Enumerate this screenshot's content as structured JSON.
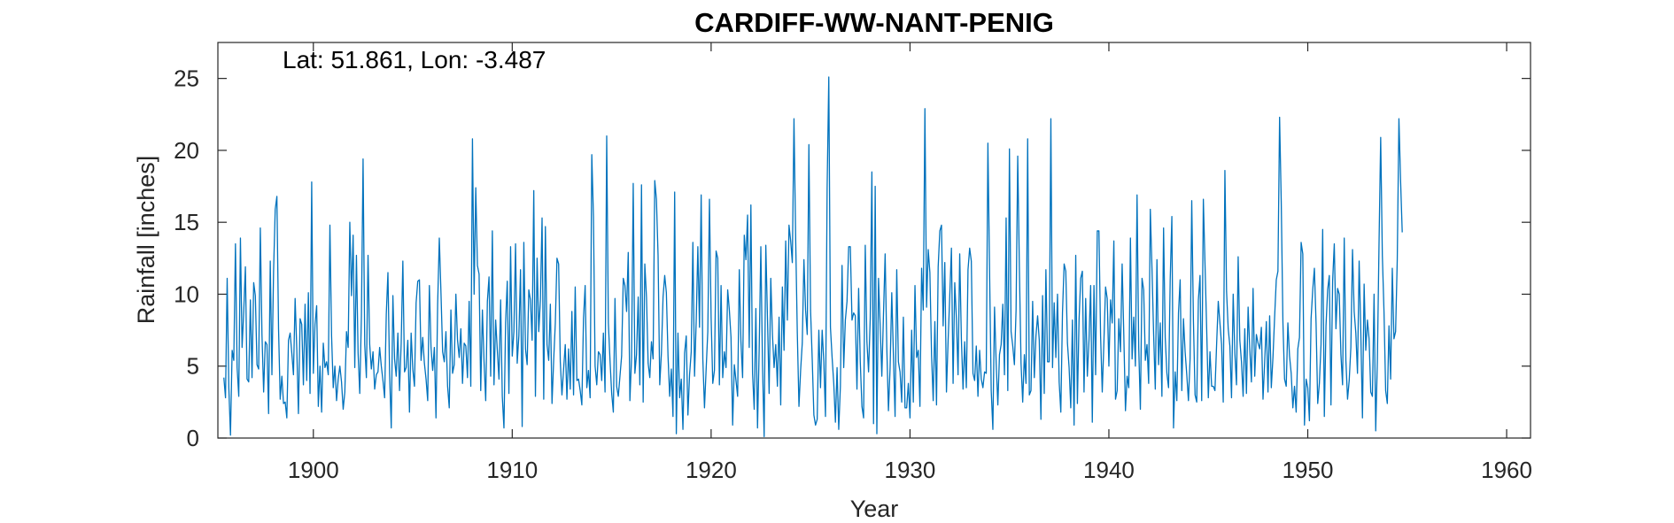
{
  "chart_data": {
    "type": "line",
    "title": "CARDIFF-WW-NANT-PENIG",
    "annotation": "Lat: 51.861, Lon: -3.487",
    "xlabel": "Year",
    "ylabel": "Rainfall [inches]",
    "xlim": [
      1895.2,
      1961.2
    ],
    "ylim": [
      0,
      27.5
    ],
    "xticks": [
      1900,
      1910,
      1920,
      1930,
      1940,
      1950,
      1960
    ],
    "yticks": [
      0,
      5,
      10,
      15,
      20,
      25
    ],
    "grid": false,
    "line_color": "#0072BD",
    "series": [
      {
        "start_year": 1895.5,
        "step_months": 1,
        "values": [
          4.2,
          2.8,
          11.1,
          3.5,
          0.2,
          6.1,
          5.4,
          13.5,
          4.9,
          2.9,
          13.9,
          6.3,
          8.8,
          11.9,
          4.1,
          3.9,
          9.6,
          4.2,
          10.8,
          9.9,
          5.1,
          4.8,
          14.6,
          7.2,
          3.2,
          6.7,
          6.5,
          1.7,
          12.3,
          4.4,
          11.6,
          15.9,
          16.8,
          7.6,
          2.7,
          4.3,
          2.4,
          2.5,
          1.4,
          6.8,
          7.3,
          5.9,
          4.4,
          9.7,
          6.2,
          1.7,
          8.3,
          7.9,
          3.7,
          9.3,
          4.0,
          10.1,
          3.1,
          17.8,
          4.5,
          7.9,
          9.2,
          2.2,
          5.0,
          1.8,
          6.6,
          4.9,
          5.3,
          4.4,
          14.8,
          7.1,
          3.5,
          5.0,
          2.6,
          4.1,
          5.0,
          3.9,
          2.0,
          3.2,
          7.4,
          6.3,
          15.0,
          9.9,
          14.1,
          4.9,
          12.7,
          5.9,
          3.1,
          8.5,
          19.4,
          6.5,
          4.2,
          12.7,
          6.5,
          4.8,
          6.0,
          3.4,
          4.4,
          4.6,
          6.3,
          5.0,
          4.0,
          2.8,
          8.6,
          11.5,
          4.5,
          0.7,
          9.9,
          5.5,
          4.3,
          7.3,
          3.3,
          6.6,
          12.3,
          4.6,
          4.9,
          6.8,
          1.8,
          7.3,
          4.8,
          3.6,
          9.4,
          10.9,
          11.0,
          5.4,
          7.0,
          5.2,
          4.1,
          2.6,
          10.6,
          6.3,
          4.7,
          6.3,
          1.4,
          9.3,
          13.9,
          10.1,
          6.0,
          5.3,
          7.4,
          3.6,
          2.1,
          8.9,
          4.5,
          5.1,
          10.0,
          6.8,
          5.6,
          7.6,
          3.8,
          6.6,
          6.4,
          4.2,
          9.5,
          3.6,
          20.8,
          10.0,
          17.4,
          12.0,
          11.4,
          3.3,
          8.9,
          5.3,
          2.6,
          9.5,
          11.2,
          4.3,
          14.4,
          3.7,
          8.2,
          6.1,
          4.1,
          9.6,
          2.9,
          0.7,
          8.0,
          10.9,
          3.1,
          13.3,
          5.7,
          7.4,
          13.5,
          5.2,
          7.1,
          11.7,
          0.8,
          13.6,
          6.2,
          5.1,
          10.3,
          9.6,
          6.8,
          17.2,
          2.9,
          12.5,
          7.4,
          9.6,
          15.3,
          2.7,
          14.7,
          6.5,
          5.4,
          9.3,
          2.4,
          5.4,
          8.0,
          12.5,
          12.1,
          5.3,
          3.0,
          4.8,
          6.5,
          2.7,
          6.2,
          3.4,
          8.8,
          3.0,
          10.5,
          4.0,
          4.1,
          3.3,
          2.3,
          8.3,
          10.6,
          3.5,
          4.7,
          2.8,
          19.7,
          15.4,
          5.0,
          3.7,
          6.0,
          5.8,
          4.0,
          7.3,
          3.2,
          21.0,
          8.0,
          5.4,
          3.1,
          1.8,
          9.7,
          3.6,
          2.9,
          4.3,
          5.7,
          11.1,
          10.6,
          8.8,
          12.9,
          2.6,
          5.6,
          17.7,
          4.5,
          5.8,
          9.8,
          3.7,
          17.6,
          2.5,
          12.1,
          9.8,
          5.2,
          4.2,
          6.7,
          5.5,
          17.9,
          16.6,
          12.7,
          3.7,
          5.9,
          9.8,
          11.3,
          10.1,
          5.7,
          2.9,
          4.8,
          1.5,
          17.1,
          0.3,
          7.3,
          2.8,
          4.1,
          0.6,
          5.9,
          7.1,
          1.6,
          4.4,
          6.0,
          13.6,
          4.3,
          8.1,
          13.3,
          7.7,
          16.9,
          5.5,
          2.1,
          4.8,
          7.4,
          16.6,
          8.4,
          3.8,
          4.7,
          13.0,
          12.5,
          3.7,
          10.6,
          4.2,
          6.0,
          4.9,
          10.3,
          8.9,
          7.0,
          0.9,
          5.1,
          4.0,
          2.9,
          11.7,
          6.7,
          4.2,
          14.1,
          12.4,
          15.5,
          6.3,
          16.2,
          4.5,
          2.0,
          9.0,
          0.7,
          6.2,
          13.3,
          5.1,
          0.1,
          13.4,
          8.4,
          3.1,
          11.1,
          7.2,
          4.9,
          6.5,
          3.6,
          8.4,
          2.3,
          10.5,
          6.1,
          13.7,
          8.2,
          14.8,
          13.7,
          12.2,
          22.2,
          14.0,
          7.3,
          2.2,
          4.7,
          6.6,
          12.4,
          8.9,
          7.2,
          20.4,
          8.9,
          5.5,
          1.6,
          0.9,
          1.3,
          7.5,
          3.5,
          7.5,
          5.3,
          1.5,
          17.4,
          25.1,
          7.7,
          5.6,
          3.8,
          1.1,
          4.9,
          0.6,
          3.6,
          12.0,
          4.9,
          8.2,
          9.5,
          13.3,
          13.3,
          8.2,
          8.7,
          8.5,
          3.4,
          10.4,
          5.3,
          2.2,
          1.4,
          13.4,
          6.7,
          4.6,
          8.3,
          18.5,
          1.0,
          17.5,
          0.3,
          11.1,
          7.8,
          4.3,
          8.6,
          12.8,
          6.3,
          1.9,
          4.9,
          10.1,
          5.7,
          1.5,
          11.7,
          5.3,
          4.6,
          2.5,
          8.4,
          2.1,
          2.1,
          3.8,
          1.4,
          7.5,
          2.5,
          10.6,
          5.6,
          6.1,
          2.2,
          11.8,
          8.9,
          22.9,
          9.1,
          13.1,
          11.5,
          5.8,
          2.6,
          8.1,
          2.3,
          11.9,
          14.4,
          14.8,
          7.8,
          12.2,
          3.2,
          6.8,
          9.9,
          13.2,
          3.8,
          10.8,
          8.3,
          4.4,
          12.8,
          6.9,
          3.4,
          6.7,
          3.5,
          11.7,
          13.2,
          12.3,
          4.5,
          4.0,
          6.4,
          2.9,
          6.1,
          4.1,
          3.5,
          4.6,
          4.5,
          20.5,
          11.7,
          3.3,
          0.6,
          9.1,
          5.2,
          2.3,
          5.8,
          6.5,
          9.3,
          4.4,
          15.3,
          3.3,
          20.1,
          7.4,
          6.4,
          5.1,
          8.9,
          19.6,
          11.8,
          5.2,
          2.5,
          5.8,
          3.8,
          20.8,
          3.0,
          3.3,
          9.5,
          4.2,
          7.1,
          8.5,
          6.8,
          1.3,
          9.9,
          3.1,
          11.7,
          5.3,
          5.3,
          22.2,
          4.9,
          9.4,
          5.6,
          10.0,
          3.9,
          1.8,
          8.7,
          12.1,
          11.6,
          6.6,
          4.9,
          2.1,
          8.2,
          0.9,
          12.7,
          2.4,
          8.2,
          11.1,
          11.6,
          3.2,
          9.7,
          4.3,
          6.8,
          10.6,
          1.1,
          10.6,
          4.4,
          14.4,
          14.4,
          7.1,
          3.2,
          6.7,
          10.5,
          9.7,
          5.0,
          9.6,
          8.0,
          13.7,
          2.7,
          3.3,
          8.3,
          6.0,
          12.1,
          7.2,
          1.9,
          4.3,
          3.5,
          13.9,
          5.5,
          8.4,
          5.0,
          16.9,
          6.3,
          2.0,
          11.1,
          10.3,
          5.4,
          6.5,
          3.8,
          15.9,
          11.8,
          7.2,
          3.4,
          12.4,
          5.1,
          8.0,
          2.9,
          14.6,
          7.0,
          4.5,
          3.5,
          11.0,
          15.4,
          0.7,
          4.6,
          2.6,
          8.7,
          11.0,
          3.3,
          8.3,
          6.0,
          4.4,
          2.6,
          5.5,
          16.5,
          8.2,
          3.0,
          2.5,
          9.6,
          11.3,
          2.6,
          16.6,
          12.1,
          7.6,
          2.8,
          6.0,
          3.6,
          3.6,
          3.3,
          6.5,
          9.5,
          8.0,
          6.5,
          2.5,
          18.6,
          10.2,
          7.6,
          6.4,
          2.8,
          10.0,
          5.9,
          3.7,
          12.6,
          6.8,
          5.3,
          2.9,
          7.6,
          3.1,
          9.1,
          6.2,
          3.9,
          10.4,
          4.3,
          7.2,
          6.6,
          6.2,
          7.7,
          2.7,
          5.3,
          8.1,
          3.2,
          8.5,
          3.5,
          5.6,
          8.4,
          11.0,
          11.6,
          22.3,
          16.4,
          8.1,
          4.1,
          3.6,
          8.0,
          5.7,
          4.5,
          2.1,
          3.6,
          1.8,
          6.2,
          7.0,
          13.6,
          12.8,
          0.9,
          4.1,
          3.5,
          1.2,
          8.3,
          10.3,
          11.8,
          8.0,
          2.4,
          3.8,
          6.5,
          14.5,
          1.5,
          7.8,
          10.3,
          11.3,
          2.3,
          10.9,
          13.5,
          7.6,
          10.4,
          10.0,
          5.8,
          3.7,
          13.9,
          5.4,
          2.7,
          4.0,
          6.3,
          13.1,
          8.8,
          7.3,
          4.5,
          12.3,
          7.4,
          1.4,
          10.7,
          6.1,
          8.2,
          6.9,
          3.2,
          2.9,
          10.0,
          0.5,
          5.4,
          13.5,
          20.9,
          12.7,
          8.8,
          3.3,
          2.4,
          7.8,
          4.1,
          11.8,
          6.9,
          7.4,
          12.4,
          22.2,
          17.9,
          14.3
        ]
      }
    ]
  }
}
